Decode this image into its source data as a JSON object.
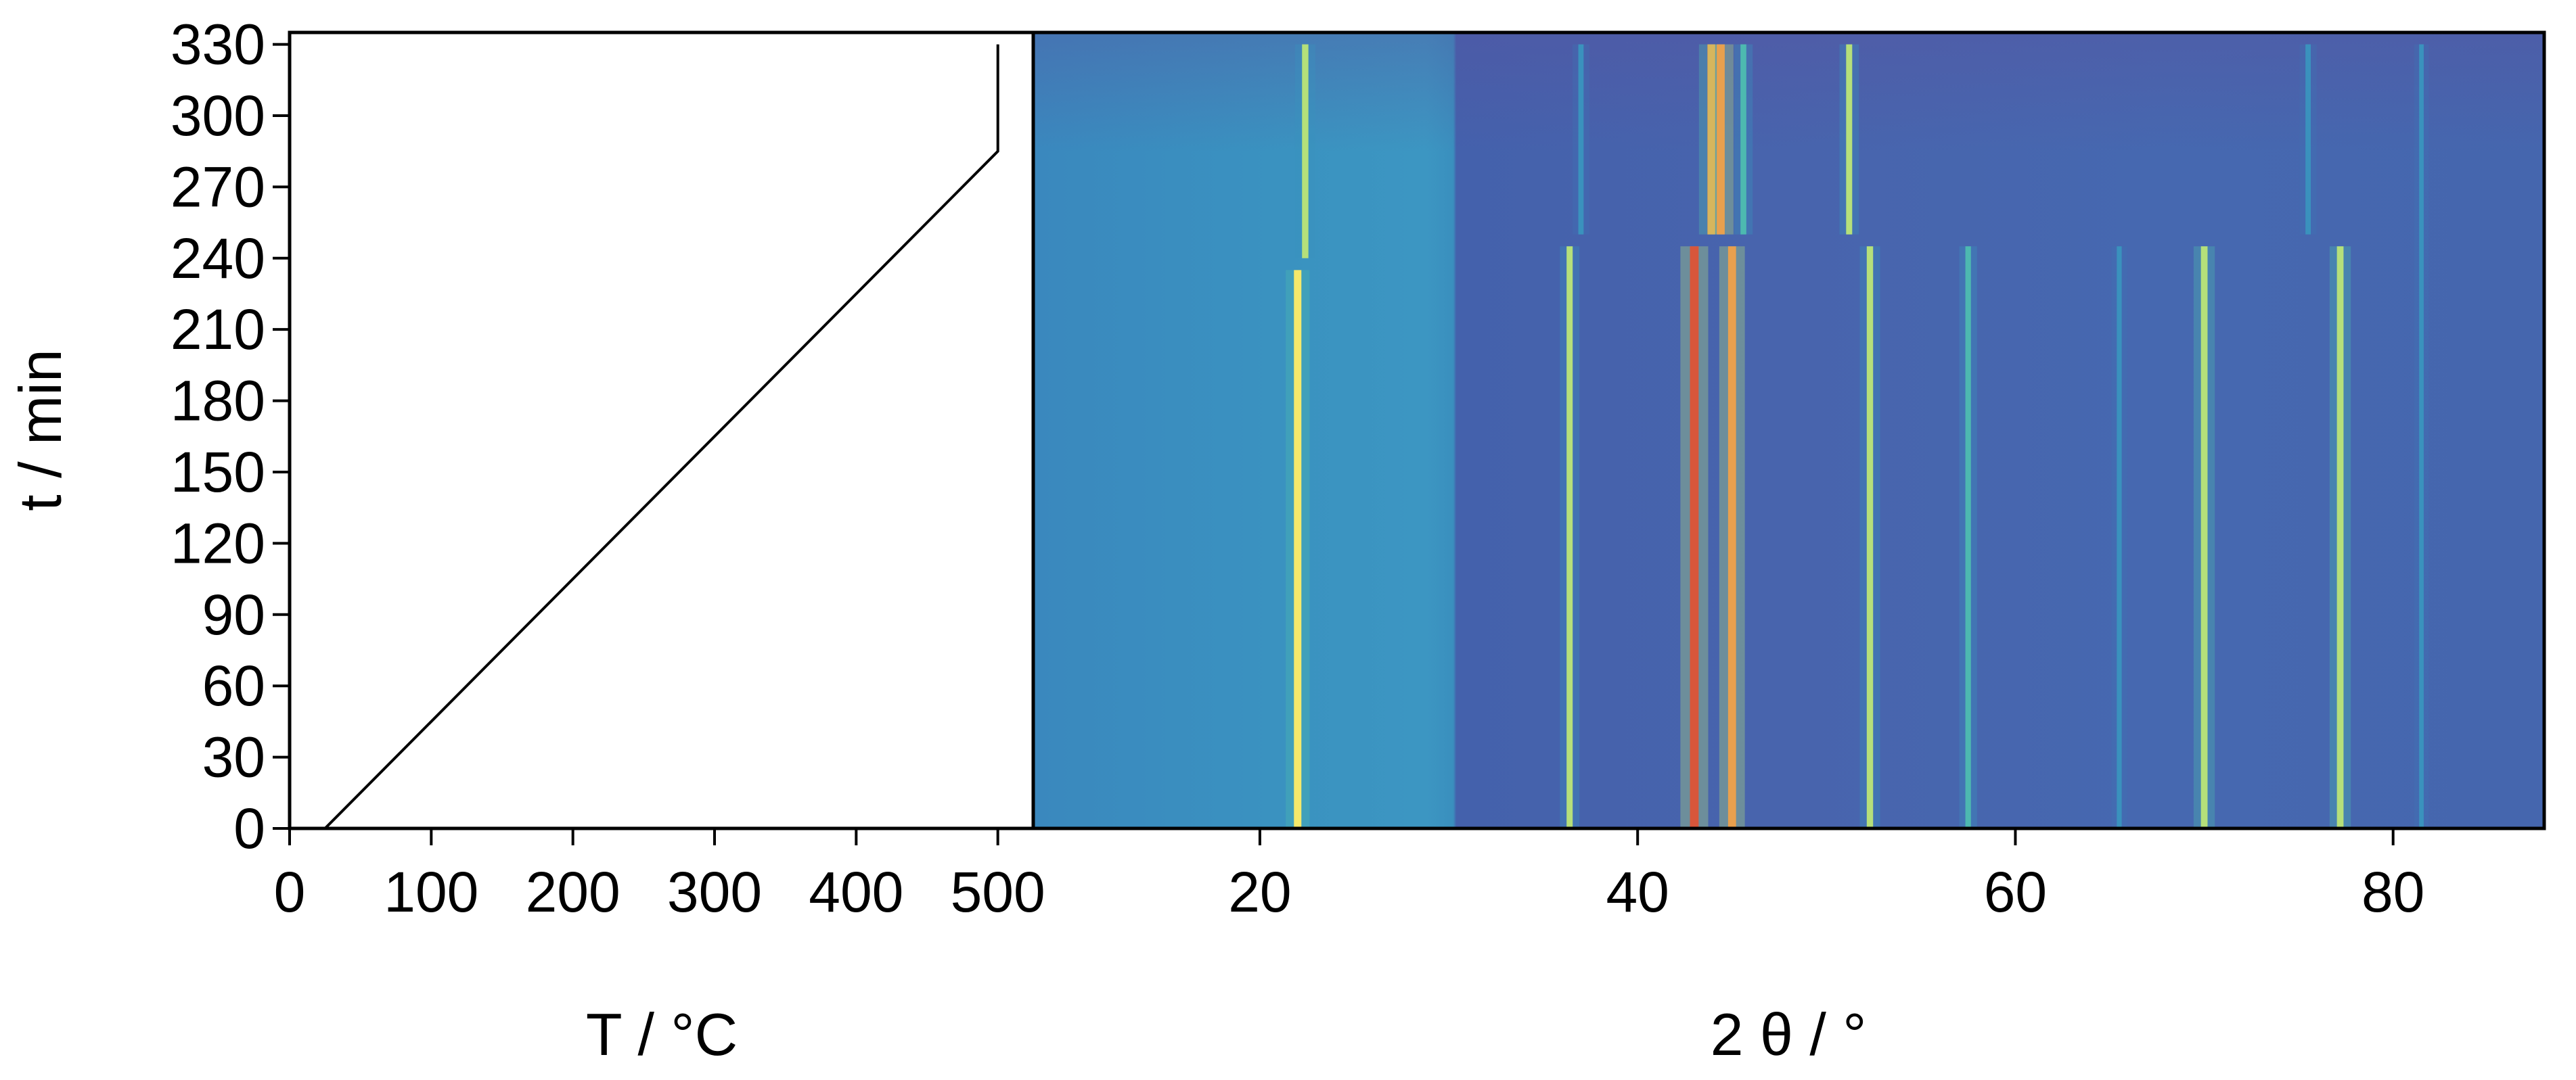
{
  "chart_data": [
    {
      "type": "line",
      "title": "",
      "xlabel": "T / °C",
      "ylabel": "t / min",
      "xlim": [
        0,
        525
      ],
      "ylim": [
        0,
        335
      ],
      "xticks": [
        0,
        100,
        200,
        300,
        400,
        500
      ],
      "yticks": [
        0,
        30,
        60,
        90,
        120,
        150,
        180,
        210,
        240,
        270,
        300,
        330
      ],
      "grid": false,
      "series": [
        {
          "x": [
            25,
            500,
            500
          ],
          "y": [
            0,
            285,
            330
          ]
        }
      ],
      "colors": {
        "line": "#000000"
      }
    },
    {
      "type": "heatmap",
      "title": "",
      "xlabel": "2 θ / °",
      "ylabel": "t / min",
      "xlim": [
        8,
        88
      ],
      "ylim": [
        0,
        335
      ],
      "xticks": [
        20,
        40,
        60,
        80
      ],
      "yticks": [
        0,
        30,
        60,
        90,
        120,
        150,
        180,
        210,
        240,
        270,
        300,
        330
      ],
      "grid": false,
      "peaks": [
        {
          "two_theta": 22.0,
          "t_range": [
            0,
            235
          ],
          "intensity": 0.75
        },
        {
          "two_theta": 22.4,
          "t_range": [
            240,
            330
          ],
          "intensity": 0.55
        },
        {
          "two_theta": 36.4,
          "t_range": [
            0,
            245
          ],
          "intensity": 0.5
        },
        {
          "two_theta": 37.0,
          "t_range": [
            250,
            330
          ],
          "intensity": 0.35
        },
        {
          "two_theta": 43.0,
          "t_range": [
            0,
            245
          ],
          "intensity": 0.98
        },
        {
          "two_theta": 43.9,
          "t_range": [
            250,
            330
          ],
          "intensity": 0.8
        },
        {
          "two_theta": 44.4,
          "t_range": [
            250,
            330
          ],
          "intensity": 0.85
        },
        {
          "two_theta": 45.0,
          "t_range": [
            0,
            245
          ],
          "intensity": 0.85
        },
        {
          "two_theta": 45.6,
          "t_range": [
            250,
            330
          ],
          "intensity": 0.45
        },
        {
          "two_theta": 51.2,
          "t_range": [
            250,
            330
          ],
          "intensity": 0.5
        },
        {
          "two_theta": 52.3,
          "t_range": [
            0,
            245
          ],
          "intensity": 0.55
        },
        {
          "two_theta": 57.5,
          "t_range": [
            0,
            245
          ],
          "intensity": 0.4
        },
        {
          "two_theta": 65.5,
          "t_range": [
            0,
            245
          ],
          "intensity": 0.28
        },
        {
          "two_theta": 70.0,
          "t_range": [
            0,
            245
          ],
          "intensity": 0.6
        },
        {
          "two_theta": 75.5,
          "t_range": [
            250,
            330
          ],
          "intensity": 0.35
        },
        {
          "two_theta": 77.2,
          "t_range": [
            0,
            245
          ],
          "intensity": 0.6
        },
        {
          "two_theta": 81.5,
          "t_range": [
            0,
            330
          ],
          "intensity": 0.22
        }
      ],
      "colors": {
        "colormap": [
          "#4b57a9",
          "#3f73b4",
          "#3a92bd",
          "#4db9b0",
          "#b5e07a",
          "#f5e96a",
          "#e8a04e",
          "#d8563b"
        ]
      }
    }
  ]
}
